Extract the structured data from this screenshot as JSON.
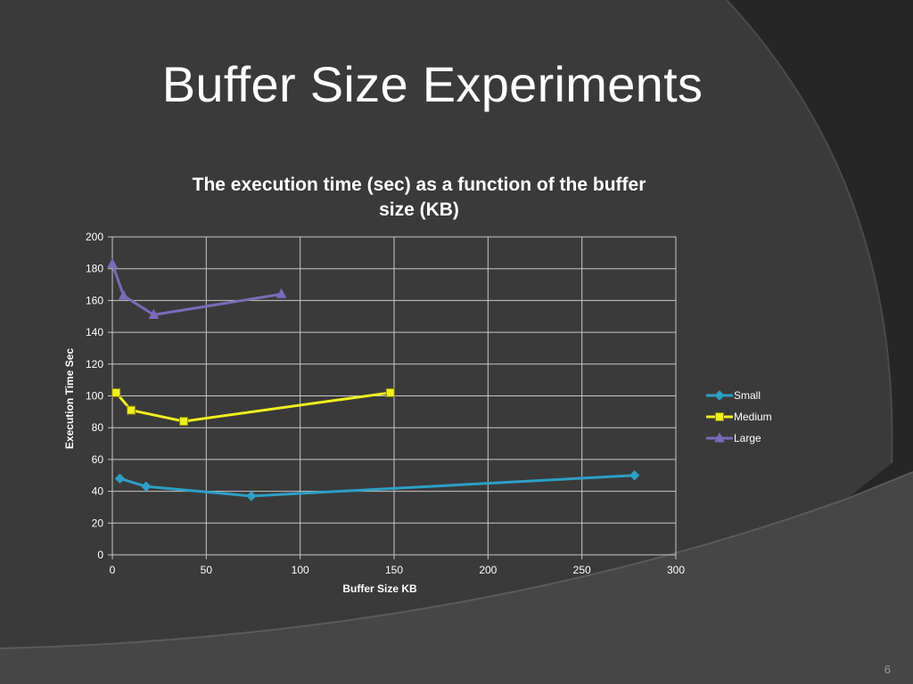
{
  "slide": {
    "title": "Buffer Size Experiments",
    "page_number": "6"
  },
  "colors": {
    "background": "#262626",
    "panel": "#3a3a3a",
    "grid": "#c8c8c8",
    "text": "#ffffff"
  },
  "chart_data": {
    "type": "line",
    "title": "The execution time (sec) as a function of the buffer size (KB)",
    "title_lines": [
      "The execution time (sec) as a function of the buffer",
      "size (KB)"
    ],
    "xlabel": "Buffer Size KB",
    "ylabel": "Execution Time Sec",
    "xlim": [
      0,
      300
    ],
    "ylim": [
      0,
      200
    ],
    "xticks": [
      0,
      50,
      100,
      150,
      200,
      250,
      300
    ],
    "yticks": [
      0,
      20,
      40,
      60,
      80,
      100,
      120,
      140,
      160,
      180,
      200
    ],
    "grid": true,
    "legend_position": "right",
    "series": [
      {
        "name": "Small",
        "color": "#2e9fc4",
        "marker": "diamond",
        "points": [
          [
            4,
            48
          ],
          [
            18,
            43
          ],
          [
            74,
            37
          ],
          [
            278,
            50
          ]
        ]
      },
      {
        "name": "Medium",
        "color": "#f0f01e",
        "marker": "square",
        "points": [
          [
            2,
            102
          ],
          [
            10,
            91
          ],
          [
            38,
            84
          ],
          [
            148,
            102
          ]
        ]
      },
      {
        "name": "Large",
        "color": "#7b6bb8",
        "marker": "triangle",
        "points": [
          [
            0,
            183
          ],
          [
            6,
            163
          ],
          [
            22,
            151
          ],
          [
            90,
            164
          ]
        ]
      }
    ]
  }
}
